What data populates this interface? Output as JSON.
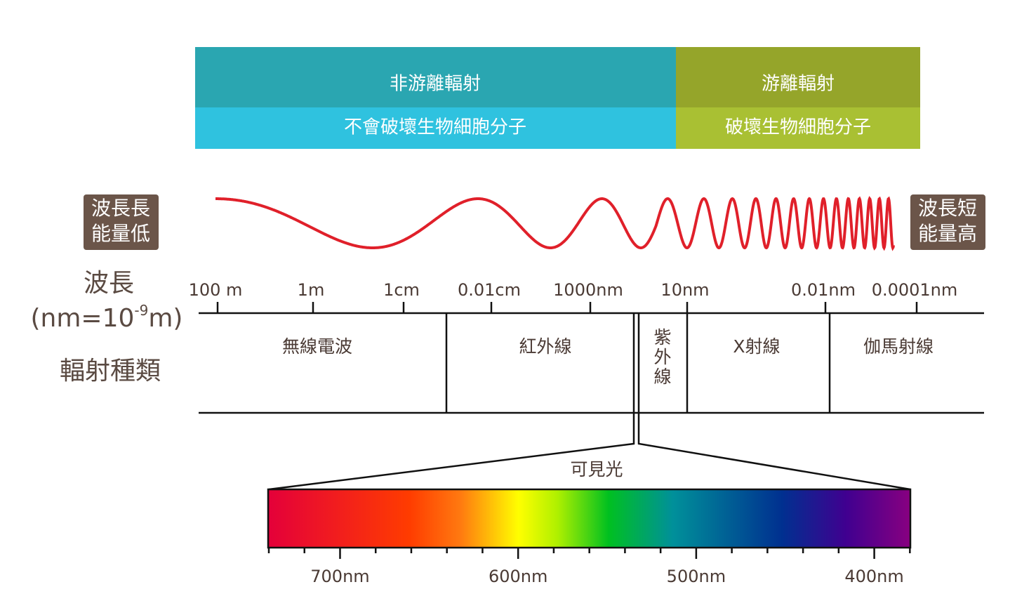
{
  "banner": {
    "non_ionizing": {
      "title": "非游離輻射",
      "subtitle": "不會破壞生物細胞分子"
    },
    "ionizing": {
      "title": "游離輻射",
      "subtitle": "破壞生物細胞分子"
    }
  },
  "badges": {
    "left": [
      "波長長",
      "能量低"
    ],
    "right": [
      "波長短",
      "能量高"
    ]
  },
  "labels": {
    "wavelength": "波長",
    "unit_prefix": "(nm=10",
    "unit_exp": "-9",
    "unit_suffix": "m)",
    "radiation_type": "輻射種類"
  },
  "wavelengths": [
    "100 m",
    "1m",
    "1cm",
    "0.01cm",
    "1000nm",
    "10nm",
    "0.01nm",
    "0.0001nm"
  ],
  "types": {
    "radio": "無線電波",
    "infrared": "紅外線",
    "ultraviolet": [
      "紫",
      "外",
      "線"
    ],
    "xray": "X射線",
    "gamma": "伽馬射線"
  },
  "visible": {
    "label": "可見光",
    "ticks": [
      "700nm",
      "600nm",
      "500nm",
      "400nm"
    ]
  }
}
